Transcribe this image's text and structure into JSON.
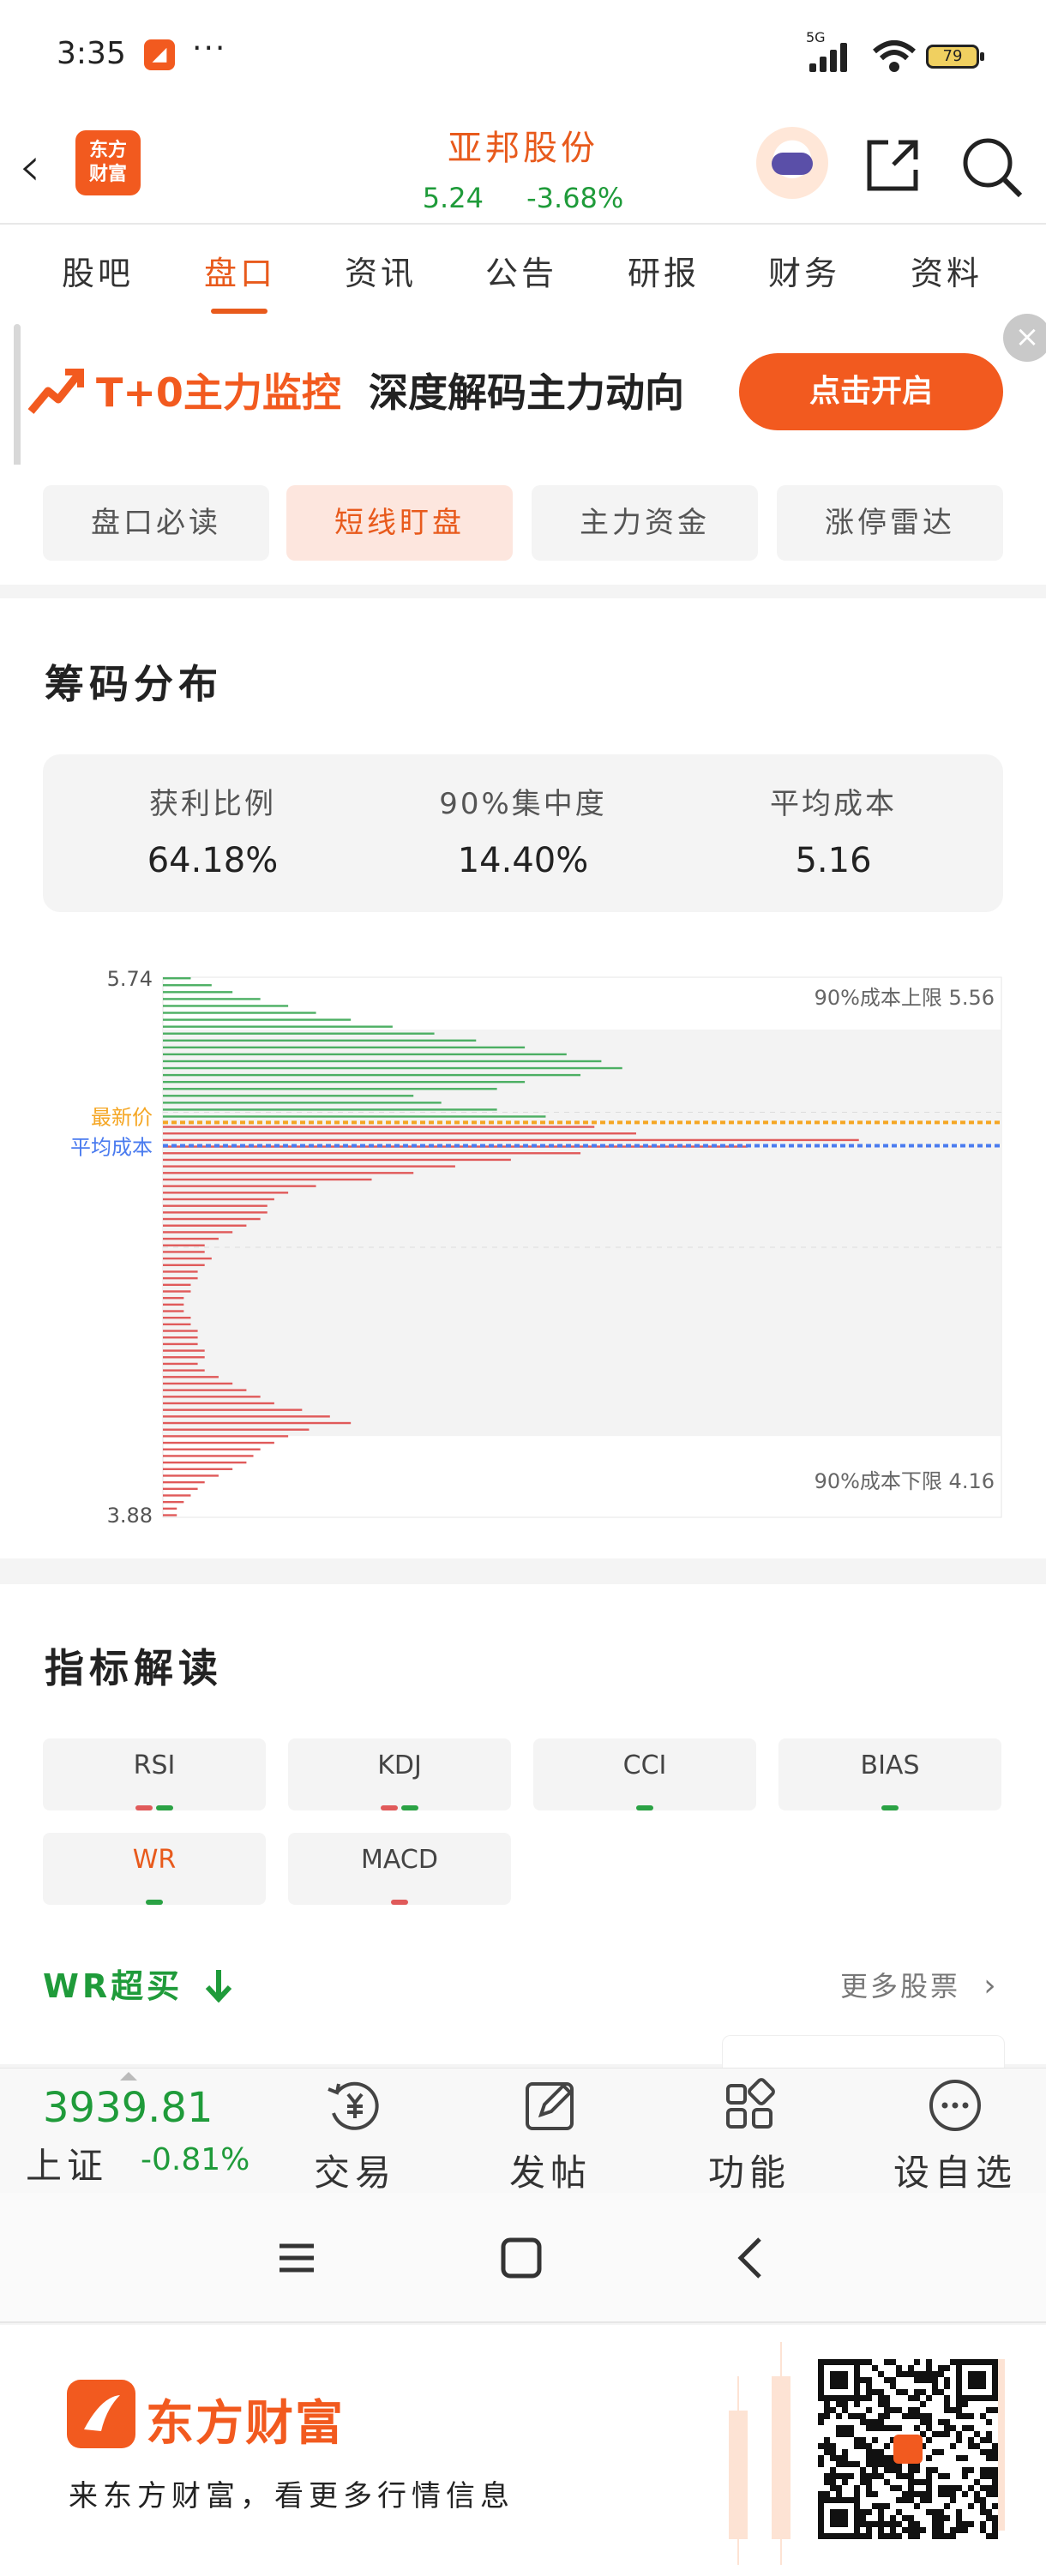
{
  "status": {
    "time": "3:35",
    "dots": "···",
    "network": "5G",
    "battery": "79"
  },
  "header": {
    "logo_text_1": "东方",
    "logo_text_2": "财富",
    "stock_name": "亚邦股份",
    "price": "5.24",
    "change": "-3.68%"
  },
  "tabs": [
    "股吧",
    "盘口",
    "资讯",
    "公告",
    "研报",
    "财务",
    "资料"
  ],
  "active_tab": "盘口",
  "banner": {
    "title_orange": "T+0主力监控",
    "title_black": "深度解码主力动向",
    "button": "点击开启"
  },
  "subtabs": [
    "盘口必读",
    "短线盯盘",
    "主力资金",
    "涨停雷达"
  ],
  "active_subtab": "短线盯盘",
  "chips": {
    "title": "筹码分布",
    "stats": [
      {
        "label": "获利比例",
        "value": "64.18%"
      },
      {
        "label": "90%集中度",
        "value": "14.40%"
      },
      {
        "label": "平均成本",
        "value": "5.16"
      }
    ],
    "latest_label": "最新价",
    "avg_label": "平均成本",
    "upper_label": "90%成本上限 5.56",
    "lower_label": "90%成本下限 4.16"
  },
  "chart_data": {
    "type": "horizontal-bar",
    "title": "筹码分布",
    "y_range": [
      3.88,
      5.74
    ],
    "y_tick_labels": [
      "5.74",
      "3.88"
    ],
    "latest_price": 5.24,
    "avg_cost": 5.16,
    "cost_90_upper": 5.56,
    "cost_90_lower": 4.16,
    "colors": {
      "profit": "#4caf63",
      "loss": "#e05a5a",
      "latest": "#f5a623",
      "avg": "#4a7bef"
    },
    "profit_lengths": [
      0.04,
      0.07,
      0.1,
      0.14,
      0.18,
      0.22,
      0.27,
      0.33,
      0.39,
      0.45,
      0.52,
      0.58,
      0.63,
      0.66,
      0.6,
      0.52,
      0.48,
      0.36,
      0.4,
      0.48,
      0.55
    ],
    "loss_lengths": [
      0.62,
      0.68,
      1.0,
      0.84,
      0.6,
      0.5,
      0.42,
      0.36,
      0.3,
      0.22,
      0.18,
      0.16,
      0.15,
      0.15,
      0.14,
      0.12,
      0.1,
      0.08,
      0.06,
      0.06,
      0.07,
      0.06,
      0.05,
      0.05,
      0.04,
      0.04,
      0.03,
      0.03,
      0.03,
      0.04,
      0.04,
      0.05,
      0.05,
      0.05,
      0.06,
      0.06,
      0.05,
      0.06,
      0.08,
      0.1,
      0.12,
      0.14,
      0.16,
      0.2,
      0.24,
      0.27,
      0.21,
      0.18,
      0.16,
      0.14,
      0.13,
      0.12,
      0.1,
      0.08,
      0.06,
      0.05,
      0.04,
      0.03,
      0.02,
      0.02
    ]
  },
  "indicators": {
    "title": "指标解读",
    "items": [
      {
        "name": "RSI",
        "dots": [
          "#e05a5a",
          "#2aa244"
        ]
      },
      {
        "name": "KDJ",
        "dots": [
          "#e05a5a",
          "#2aa244"
        ]
      },
      {
        "name": "CCI",
        "dots": [
          "#2aa244"
        ]
      },
      {
        "name": "BIAS",
        "dots": [
          "#2aa244"
        ]
      },
      {
        "name": "WR",
        "dots": [
          "#2aa244"
        ]
      },
      {
        "name": "MACD",
        "dots": [
          "#e05a5a"
        ]
      }
    ],
    "active": "WR",
    "wr_title": "WR超买",
    "more": "更多股票"
  },
  "bottombar": {
    "index_value": "3939.81",
    "index_name": "上证",
    "index_change": "-0.81%",
    "nav": [
      "交易",
      "发帖",
      "功能",
      "设自选"
    ]
  },
  "footer": {
    "brand": "东方财富",
    "tagline": "来东方财富，看更多行情信息"
  }
}
